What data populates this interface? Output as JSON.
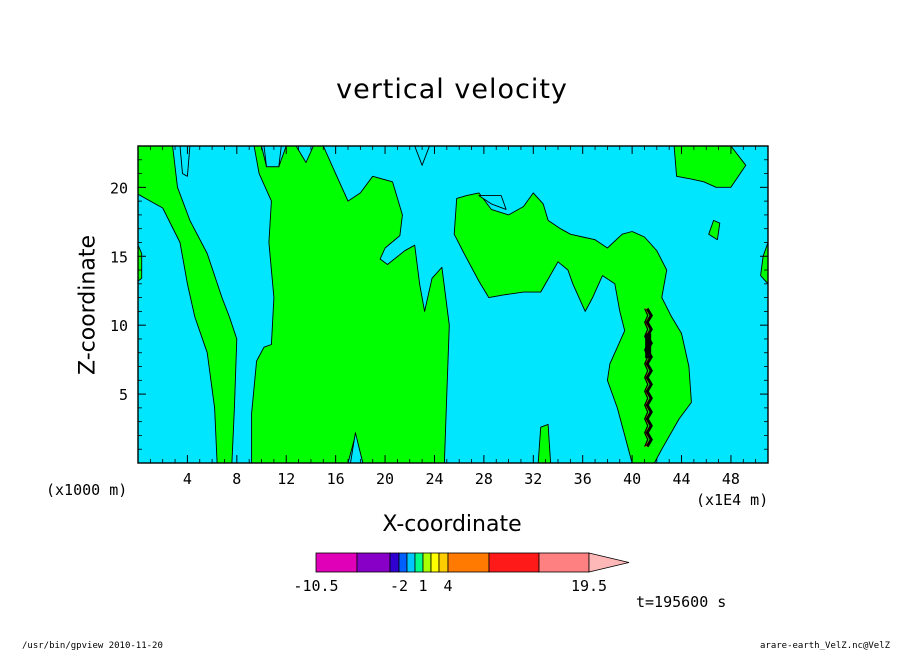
{
  "chart_data": {
    "type": "heatmap",
    "title": "vertical velocity",
    "xlabel": "X-coordinate",
    "ylabel": "Z-coordinate",
    "x_unit": "(x1000 m)",
    "x_scale_note": "(x1E4 m)",
    "xlim": [
      0,
      51
    ],
    "ylim": [
      0,
      23
    ],
    "x_ticks": [
      4,
      8,
      12,
      16,
      20,
      24,
      28,
      32,
      36,
      40,
      44,
      48
    ],
    "y_ticks": [
      5,
      10,
      15,
      20
    ],
    "time_label": "t=195600 s",
    "colorbar": {
      "levels": [
        -10.5,
        -7,
        -4,
        -2,
        -1,
        0,
        1,
        2,
        3,
        4,
        7,
        11,
        15,
        19.5
      ],
      "colors": [
        "#e000b8",
        "#8800c8",
        "#3000d0",
        "#0060ff",
        "#00c8ff",
        "#00ff88",
        "#aaff00",
        "#ffff00",
        "#ffcc00",
        "#ff7a00",
        "#ff1a1a",
        "#ff8080",
        "#ffb8b8"
      ],
      "tick_labels": [
        "-10.5",
        "-2",
        "1",
        "4",
        "19.5"
      ]
    },
    "field_colors": {
      "negative": "#00e6ff",
      "positive": "#00ff00",
      "strong": "#000000"
    },
    "positive_regions": [
      {
        "name": "left-upper",
        "points": [
          [
            0,
            23
          ],
          [
            2.8,
            23
          ],
          [
            3.2,
            20
          ],
          [
            4.2,
            17.6
          ],
          [
            5.6,
            15.2
          ],
          [
            6.8,
            12
          ],
          [
            7.4,
            10.6
          ],
          [
            8,
            9
          ],
          [
            7.8,
            4
          ],
          [
            7.6,
            0
          ],
          [
            6.4,
            0
          ],
          [
            6.2,
            4
          ],
          [
            5.6,
            8
          ],
          [
            4.6,
            10.6
          ],
          [
            4,
            13
          ],
          [
            3.4,
            16
          ],
          [
            2,
            18.5
          ],
          [
            0.6,
            19.2
          ],
          [
            0,
            19.5
          ]
        ]
      },
      {
        "name": "center",
        "points": [
          [
            9.4,
            23
          ],
          [
            10,
            23
          ],
          [
            10.4,
            21.5
          ],
          [
            11.4,
            21.5
          ],
          [
            12,
            23
          ],
          [
            15,
            23
          ],
          [
            16,
            21
          ],
          [
            17,
            19
          ],
          [
            18,
            19.6
          ],
          [
            19,
            20.8
          ],
          [
            20.6,
            20.4
          ],
          [
            21.4,
            18
          ],
          [
            21.2,
            16.5
          ],
          [
            20,
            15.6
          ],
          [
            19.6,
            14.8
          ],
          [
            20.2,
            14.4
          ],
          [
            21.6,
            15.4
          ],
          [
            22.4,
            15.8
          ],
          [
            22.8,
            13
          ],
          [
            23.2,
            11
          ],
          [
            23.8,
            13.4
          ],
          [
            24.6,
            14.2
          ],
          [
            25.2,
            10
          ],
          [
            25,
            5
          ],
          [
            24.8,
            0
          ],
          [
            18.2,
            0
          ],
          [
            17.6,
            2
          ],
          [
            17,
            0
          ],
          [
            9.2,
            0
          ],
          [
            9.2,
            3.6
          ],
          [
            9.6,
            7.4
          ],
          [
            10.2,
            8.4
          ],
          [
            10.8,
            8.6
          ],
          [
            11,
            12
          ],
          [
            10.6,
            16
          ],
          [
            10.8,
            19
          ],
          [
            9.8,
            21
          ]
        ]
      },
      {
        "name": "right",
        "points": [
          [
            25.8,
            19.2
          ],
          [
            26.6,
            19.4
          ],
          [
            27.6,
            19.6
          ],
          [
            28.6,
            18.4
          ],
          [
            30,
            18
          ],
          [
            31.2,
            18.6
          ],
          [
            32,
            19.6
          ],
          [
            32.8,
            18.8
          ],
          [
            33.2,
            17.6
          ],
          [
            34.2,
            17
          ],
          [
            35,
            16.6
          ],
          [
            36,
            16.4
          ],
          [
            37,
            16.2
          ],
          [
            38,
            15.6
          ],
          [
            39.2,
            16.6
          ],
          [
            40,
            16.8
          ],
          [
            41,
            16.4
          ],
          [
            42,
            15.4
          ],
          [
            42.8,
            14
          ],
          [
            42.4,
            12
          ],
          [
            43.2,
            10.6
          ],
          [
            44,
            9.4
          ],
          [
            44.6,
            7
          ],
          [
            44.8,
            4.4
          ],
          [
            43.8,
            3.2
          ],
          [
            42.4,
            1
          ],
          [
            41.8,
            0
          ],
          [
            40,
            0
          ],
          [
            39.4,
            2
          ],
          [
            38.8,
            4
          ],
          [
            38,
            6
          ],
          [
            38.2,
            7.2
          ],
          [
            39.4,
            9.6
          ],
          [
            39,
            11
          ],
          [
            38.6,
            13
          ],
          [
            37.6,
            13.6
          ],
          [
            36.8,
            12
          ],
          [
            36.2,
            11
          ],
          [
            35.2,
            13
          ],
          [
            34.8,
            14
          ],
          [
            34,
            14.6
          ],
          [
            32.6,
            12.4
          ],
          [
            31.2,
            12.4
          ],
          [
            29.6,
            12.2
          ],
          [
            28.4,
            12
          ],
          [
            27.6,
            13.2
          ],
          [
            26.4,
            15.2
          ],
          [
            25.6,
            16.6
          ]
        ]
      },
      {
        "name": "far-right-top",
        "points": [
          [
            43.4,
            23
          ],
          [
            48,
            23
          ],
          [
            49.2,
            21.6
          ],
          [
            48,
            20
          ],
          [
            46.8,
            20
          ],
          [
            45.8,
            20.4
          ],
          [
            44.8,
            20.6
          ],
          [
            43.6,
            20.8
          ]
        ]
      },
      {
        "name": "far-right-edge",
        "points": [
          [
            51,
            16
          ],
          [
            50.6,
            15
          ],
          [
            50.4,
            13.6
          ],
          [
            51,
            13
          ]
        ]
      },
      {
        "name": "blob-45",
        "points": [
          [
            46.2,
            16.6
          ],
          [
            46.6,
            17.6
          ],
          [
            47.1,
            17.4
          ],
          [
            46.9,
            16.2
          ]
        ]
      },
      {
        "name": "blob-32",
        "points": [
          [
            32.4,
            0
          ],
          [
            32.6,
            2.6
          ],
          [
            33.2,
            2.8
          ],
          [
            33.4,
            0
          ]
        ]
      },
      {
        "name": "left-edge",
        "points": [
          [
            0,
            15.8
          ],
          [
            0.3,
            15.2
          ],
          [
            0.3,
            13.4
          ],
          [
            0,
            13.2
          ]
        ]
      }
    ],
    "negative_holes": [
      {
        "name": "hole-top-left",
        "points": [
          [
            3.4,
            23
          ],
          [
            3.6,
            21
          ],
          [
            4,
            20.8
          ],
          [
            4.2,
            23
          ]
        ]
      },
      {
        "name": "hole-top-mid",
        "points": [
          [
            10.2,
            23
          ],
          [
            10.4,
            21.5
          ],
          [
            11.4,
            21.5
          ],
          [
            11.6,
            23
          ]
        ]
      },
      {
        "name": "hole-13",
        "points": [
          [
            12.8,
            23
          ],
          [
            13.6,
            21.8
          ],
          [
            14.2,
            23
          ]
        ]
      },
      {
        "name": "hole-23",
        "points": [
          [
            22.4,
            23
          ],
          [
            23,
            21.6
          ],
          [
            23.6,
            23
          ]
        ]
      },
      {
        "name": "hole-28",
        "points": [
          [
            27.6,
            19.4
          ],
          [
            28.6,
            18.8
          ],
          [
            29.8,
            18.4
          ],
          [
            29.4,
            19.4
          ]
        ]
      },
      {
        "name": "hole-18",
        "points": [
          [
            17.2,
            0
          ],
          [
            17.6,
            2.2
          ],
          [
            18.2,
            0
          ]
        ]
      }
    ],
    "strong_core": {
      "x_center": 41.3,
      "z_top": 11.2,
      "z_bottom": 1
    }
  },
  "footer": {
    "left": "/usr/bin/gpview  2010-11-20",
    "right": "arare-earth_VelZ.nc@VelZ"
  }
}
